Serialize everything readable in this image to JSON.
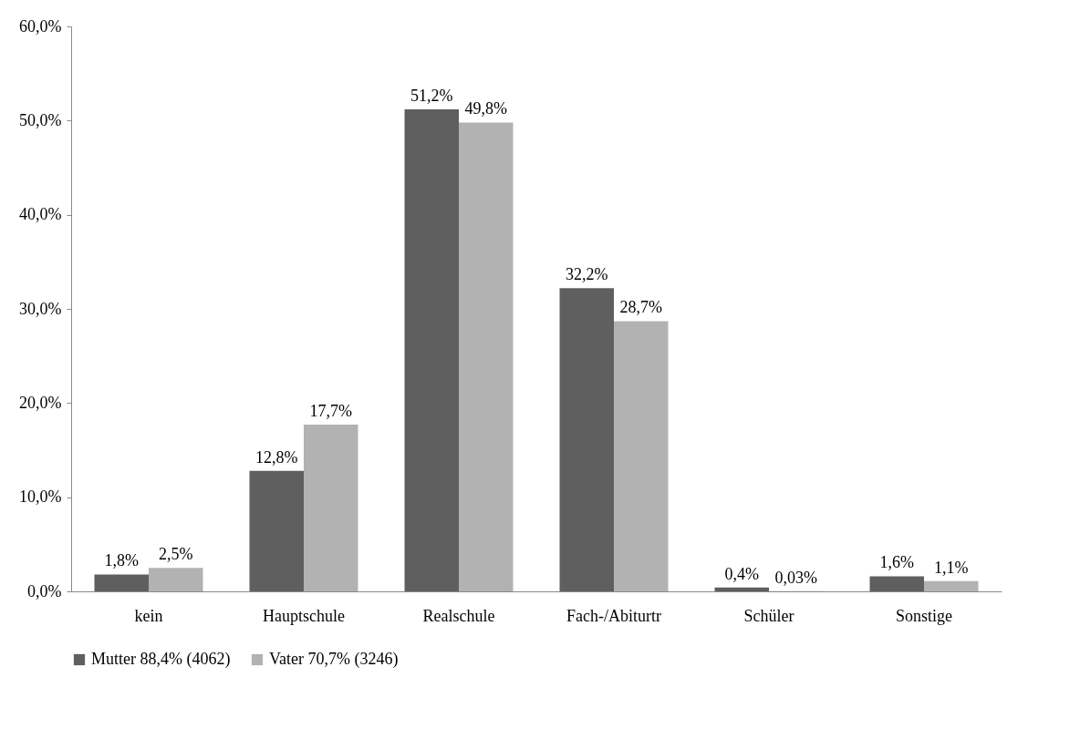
{
  "chart_data": {
    "type": "bar",
    "categories": [
      "kein",
      "Hauptschule",
      "Realschule",
      "Fach-/Abiturtr",
      "Schüler",
      "Sonstige"
    ],
    "series": [
      {
        "name": "Mutter 88,4% (4062)",
        "color": "#5f5f5f",
        "values": [
          1.8,
          12.8,
          51.2,
          32.2,
          0.4,
          1.6
        ],
        "value_labels": [
          "1,8%",
          "12,8%",
          "51,2%",
          "32,2%",
          "0,4%",
          "1,6%"
        ]
      },
      {
        "name": "Vater 70,7% (3246)",
        "color": "#b2b2b2",
        "values": [
          2.5,
          17.7,
          49.8,
          28.7,
          0.03,
          1.1
        ],
        "value_labels": [
          "2,5%",
          "17,7%",
          "49,8%",
          "28,7%",
          "0,03%",
          "1,1%"
        ]
      }
    ],
    "ylim": [
      0,
      60
    ],
    "yticks": [
      {
        "value": 0,
        "label": "0,0%"
      },
      {
        "value": 10,
        "label": "10,0%"
      },
      {
        "value": 20,
        "label": "20,0%"
      },
      {
        "value": 30,
        "label": "30,0%"
      },
      {
        "value": 40,
        "label": "40,0%"
      },
      {
        "value": 50,
        "label": "50,0%"
      },
      {
        "value": 60,
        "label": "60,0%"
      }
    ],
    "grid": false,
    "legend": "bottom"
  }
}
